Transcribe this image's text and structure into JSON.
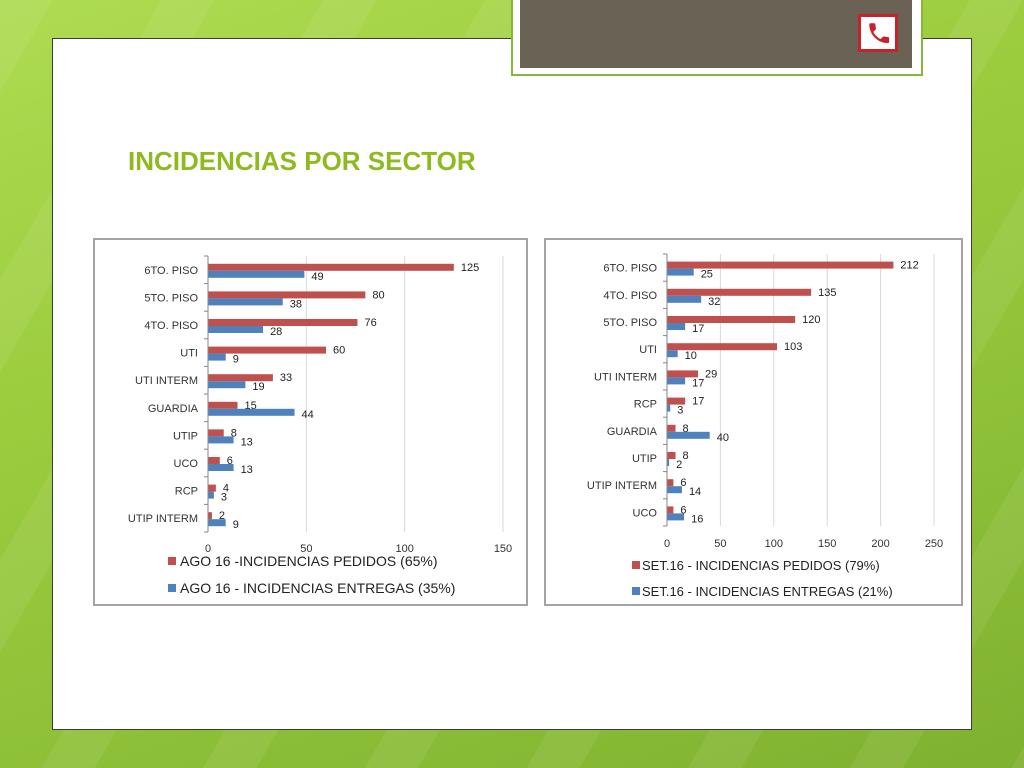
{
  "header": {
    "icon": "phone-icon"
  },
  "slide": {
    "title": "INCIDENCIAS POR SECTOR"
  },
  "colors": {
    "title": "#8fba1e",
    "background": "#9ccd3f",
    "header_band": "#6b6256",
    "header_border": "#86b63a",
    "phone_icon": "#c8232c",
    "pedidos": "#c0504d",
    "entregas": "#4f81bd"
  },
  "chart_data": [
    {
      "type": "bar",
      "orientation": "horizontal",
      "categories": [
        "6TO. PISO",
        "5TO. PISO",
        "4TO. PISO",
        "UTI",
        "UTI INTERM",
        "GUARDIA",
        "UTIP",
        "UCO",
        "RCP",
        "UTIP INTERM"
      ],
      "series": [
        {
          "name": "AGO 16 -INCIDENCIAS PEDIDOS (65%)",
          "values": [
            125,
            80,
            76,
            60,
            33,
            15,
            8,
            6,
            4,
            2
          ],
          "color": "#c0504d"
        },
        {
          "name": "AGO 16 - INCIDENCIAS ENTREGAS (35%)",
          "values": [
            49,
            38,
            28,
            9,
            19,
            44,
            13,
            13,
            3,
            9
          ],
          "color": "#4f81bd"
        }
      ],
      "xlim": [
        0,
        150
      ],
      "xticks": [
        0,
        50,
        100,
        150
      ],
      "grid": true,
      "data_labels": true,
      "legend": "bottom"
    },
    {
      "type": "bar",
      "orientation": "horizontal",
      "categories": [
        "6TO. PISO",
        "4TO. PISO",
        "5TO. PISO",
        "UTI",
        "UTI INTERM",
        "RCP",
        "GUARDIA",
        "UTIP",
        "UTIP INTERM",
        "UCO"
      ],
      "series": [
        {
          "name": "SET.16 - INCIDENCIAS PEDIDOS (79%)",
          "values": [
            212,
            135,
            120,
            103,
            29,
            17,
            8,
            8,
            6,
            6
          ],
          "color": "#c0504d"
        },
        {
          "name": "SET.16 - INCIDENCIAS ENTREGAS (21%)",
          "values": [
            25,
            32,
            17,
            10,
            17,
            3,
            40,
            2,
            14,
            16
          ],
          "color": "#4f81bd"
        }
      ],
      "xlim": [
        0,
        250
      ],
      "xticks": [
        0,
        50,
        100,
        150,
        200,
        250
      ],
      "grid": true,
      "data_labels": true,
      "legend": "bottom"
    }
  ]
}
